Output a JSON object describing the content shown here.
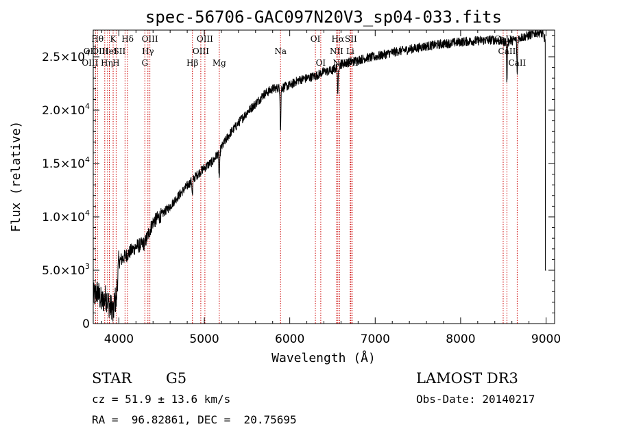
{
  "chart_data": {
    "type": "line",
    "title": "spec-56706-GAC097N20V3_sp04-033.fits",
    "xlabel": "Wavelength (Å)",
    "ylabel": "Flux (relative)",
    "xlim": [
      3700,
      9100
    ],
    "ylim": [
      0,
      27500
    ],
    "x_ticks": [
      4000,
      5000,
      6000,
      7000,
      8000,
      9000
    ],
    "x_tick_labels": [
      "4000",
      "5000",
      "6000",
      "7000",
      "8000",
      "9000"
    ],
    "y_ticks": [
      0,
      5000,
      10000,
      15000,
      20000,
      25000
    ],
    "y_tick_labels": [
      {
        "base": "0",
        "exp": ""
      },
      {
        "base": "5.0×10",
        "exp": "3"
      },
      {
        "base": "1.0×10",
        "exp": "4"
      },
      {
        "base": "1.5×10",
        "exp": "4"
      },
      {
        "base": "2.0×10",
        "exp": "4"
      },
      {
        "base": "2.5×10",
        "exp": "4"
      }
    ],
    "spectrum_knots": [
      [
        3700,
        2500
      ],
      [
        3750,
        3000
      ],
      [
        3800,
        2000
      ],
      [
        3850,
        2500
      ],
      [
        3900,
        1500
      ],
      [
        3950,
        2000
      ],
      [
        3980,
        3800
      ],
      [
        4000,
        5800
      ],
      [
        4100,
        6500
      ],
      [
        4200,
        7200
      ],
      [
        4300,
        7500
      ],
      [
        4400,
        9500
      ],
      [
        4500,
        10200
      ],
      [
        4600,
        11000
      ],
      [
        4700,
        12000
      ],
      [
        4800,
        12900
      ],
      [
        4900,
        13800
      ],
      [
        5000,
        14600
      ],
      [
        5100,
        15200
      ],
      [
        5200,
        16500
      ],
      [
        5300,
        17800
      ],
      [
        5400,
        18800
      ],
      [
        5500,
        19800
      ],
      [
        5600,
        20600
      ],
      [
        5700,
        21500
      ],
      [
        5800,
        22000
      ],
      [
        5900,
        22100
      ],
      [
        6000,
        22300
      ],
      [
        6100,
        22800
      ],
      [
        6200,
        23000
      ],
      [
        6300,
        23200
      ],
      [
        6400,
        23600
      ],
      [
        6500,
        23700
      ],
      [
        6600,
        24300
      ],
      [
        6700,
        24500
      ],
      [
        6800,
        24700
      ],
      [
        6900,
        24900
      ],
      [
        7000,
        25000
      ],
      [
        7200,
        25400
      ],
      [
        7400,
        25700
      ],
      [
        7600,
        26000
      ],
      [
        7800,
        26200
      ],
      [
        8000,
        26400
      ],
      [
        8200,
        26500
      ],
      [
        8400,
        26600
      ],
      [
        8500,
        26400
      ],
      [
        8600,
        26500
      ],
      [
        8700,
        26800
      ],
      [
        8800,
        27000
      ],
      [
        8900,
        27300
      ],
      [
        8950,
        27200
      ],
      [
        9000,
        26500
      ]
    ],
    "absorption_dips": [
      {
        "x": 3933,
        "depth": 1200,
        "width": 8
      },
      {
        "x": 3968,
        "depth": 1200,
        "width": 8
      },
      {
        "x": 4861,
        "depth": 1500,
        "width": 6
      },
      {
        "x": 5175,
        "depth": 2500,
        "width": 8
      },
      {
        "x": 5892,
        "depth": 4000,
        "width": 6
      },
      {
        "x": 6563,
        "depth": 3000,
        "width": 5
      },
      {
        "x": 8542,
        "depth": 4000,
        "width": 6
      },
      {
        "x": 8662,
        "depth": 3500,
        "width": 6
      }
    ],
    "reference_lines": [
      {
        "x": 3727,
        "labels": [
          {
            "text": "OII",
            "row": 1,
            "dx": -8
          },
          {
            "text": "OIII",
            "row": 2,
            "dx": -8
          }
        ]
      },
      {
        "x": 3750,
        "labels": [
          {
            "text": "Hθ",
            "row": 0,
            "dx": 0
          },
          {
            "text": "OIII",
            "row": 1,
            "dx": 4
          }
        ]
      },
      {
        "x": 3835,
        "labels": [
          {
            "text": "Hη",
            "row": 2,
            "dx": 3
          }
        ]
      },
      {
        "x": 3868,
        "labels": []
      },
      {
        "x": 3889,
        "labels": [
          {
            "text": "HeI",
            "row": 1,
            "dx": 0
          }
        ]
      },
      {
        "x": 3933,
        "labels": [
          {
            "text": "K",
            "row": 0,
            "dx": 0
          }
        ]
      },
      {
        "x": 3968,
        "labels": [
          {
            "text": "H",
            "row": 2,
            "dx": 0
          }
        ]
      },
      {
        "x": 4072,
        "labels": [
          {
            "text": "SII",
            "row": 1,
            "dx": -8
          }
        ]
      },
      {
        "x": 4102,
        "labels": [
          {
            "text": "Hδ",
            "row": 0,
            "dx": 0
          }
        ]
      },
      {
        "x": 4304,
        "labels": [
          {
            "text": "G",
            "row": 2,
            "dx": 0
          }
        ]
      },
      {
        "x": 4340,
        "labels": [
          {
            "text": "Hγ",
            "row": 1,
            "dx": 0
          }
        ]
      },
      {
        "x": 4363,
        "labels": [
          {
            "text": "OIII",
            "row": 0,
            "dx": 0
          }
        ]
      },
      {
        "x": 4861,
        "labels": [
          {
            "text": "Hβ",
            "row": 2,
            "dx": 0
          }
        ]
      },
      {
        "x": 4959,
        "labels": [
          {
            "text": "OIII",
            "row": 1,
            "dx": 0
          }
        ]
      },
      {
        "x": 5007,
        "labels": [
          {
            "text": "OIII",
            "row": 0,
            "dx": 0
          }
        ]
      },
      {
        "x": 5175,
        "labels": [
          {
            "text": "Mg",
            "row": 2,
            "dx": 0
          }
        ]
      },
      {
        "x": 5892,
        "labels": [
          {
            "text": "Na",
            "row": 1,
            "dx": 0
          }
        ]
      },
      {
        "x": 6300,
        "labels": [
          {
            "text": "OI",
            "row": 0,
            "dx": 0
          }
        ]
      },
      {
        "x": 6363,
        "labels": [
          {
            "text": "OI",
            "row": 2,
            "dx": 0
          }
        ]
      },
      {
        "x": 6548,
        "labels": [
          {
            "text": "NII",
            "row": 1,
            "dx": 0
          }
        ]
      },
      {
        "x": 6563,
        "labels": [
          {
            "text": "Hα",
            "row": 0,
            "dx": 0
          }
        ]
      },
      {
        "x": 6583,
        "labels": [
          {
            "text": "NII",
            "row": 2,
            "dx": 0
          }
        ]
      },
      {
        "x": 6708,
        "labels": [
          {
            "text": "Li",
            "row": 1,
            "dx": 0
          }
        ]
      },
      {
        "x": 6716,
        "labels": [
          {
            "text": "SII",
            "row": 0,
            "dx": 0
          }
        ]
      },
      {
        "x": 6731,
        "labels": [
          {
            "text": "SII",
            "row": 2,
            "dx": 0
          }
        ]
      },
      {
        "x": 8498,
        "labels": [
          {
            "text": "CaII",
            "row": 0,
            "dx": 0
          }
        ]
      },
      {
        "x": 8542,
        "labels": [
          {
            "text": "CaII",
            "row": 1,
            "dx": 0
          }
        ]
      },
      {
        "x": 8662,
        "labels": [
          {
            "text": "CaII",
            "row": 2,
            "dx": 0
          }
        ]
      }
    ]
  },
  "footer": {
    "class_label": "STAR",
    "subclass": "G5",
    "survey": "LAMOST DR3",
    "cz": "cz = 51.9 ± 13.6 km/s",
    "obs_date": "Obs-Date: 20140217",
    "coords": "RA =  96.82861, DEC =  20.75695"
  },
  "colors": {
    "spectrum": "#000000",
    "reference_line": "#cc0000",
    "axis": "#000000"
  }
}
